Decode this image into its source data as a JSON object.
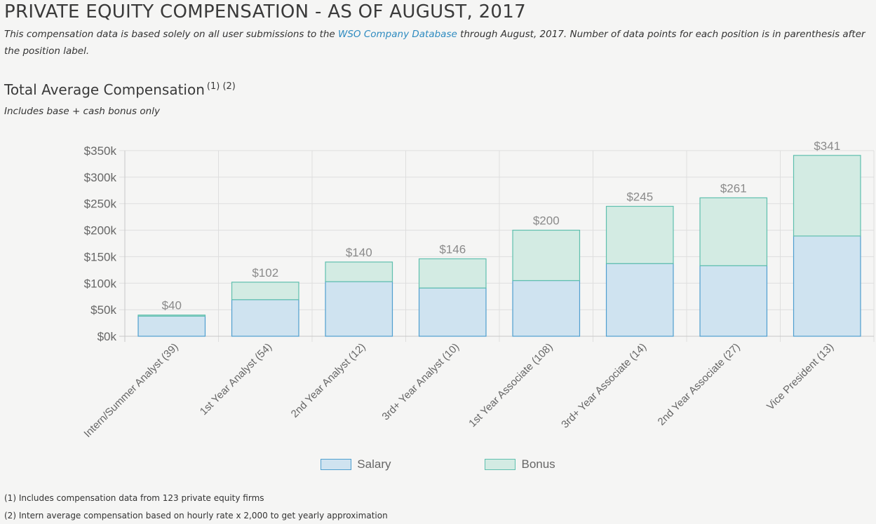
{
  "header": {
    "title": "PRIVATE EQUITY COMPENSATION - AS OF AUGUST, 2017",
    "intro_before": "This compensation data is based solely on all user submissions to the ",
    "intro_link": "WSO Company Database",
    "intro_after": " through August, 2017. Number of data points for each position is in parenthesis after the position label."
  },
  "section": {
    "title": "Total Average Compensation",
    "title_refs": "(1) (2)",
    "subtitle": "Includes base + cash bonus only"
  },
  "chart_data": {
    "type": "bar",
    "stacked": true,
    "categories": [
      "Intern/Summer Analyst (39)",
      "1st Year Analyst (54)",
      "2nd Year Analyst (12)",
      "3rd+ Year Analyst (10)",
      "1st Year Associate (108)",
      "3rd+ Year Associate (14)",
      "2nd Year Associate (27)",
      "Vice President (13)"
    ],
    "series": [
      {
        "name": "Salary",
        "values": [
          38,
          69,
          103,
          91,
          105,
          137,
          133,
          189
        ]
      },
      {
        "name": "Bonus",
        "values": [
          2,
          33,
          37,
          55,
          95,
          108,
          128,
          152
        ]
      }
    ],
    "totals_labels": [
      "$40",
      "$102",
      "$140",
      "$146",
      "$200",
      "$245",
      "$261",
      "$341"
    ],
    "yticks": [
      "$0k",
      "$50k",
      "$100k",
      "$150k",
      "$200k",
      "$250k",
      "$300k",
      "$350k"
    ],
    "ylim": [
      0,
      350
    ],
    "grid": true,
    "legend_position": "bottom",
    "colors": {
      "salary_fill": "#cfe3f0",
      "salary_stroke": "#4f9fcf",
      "bonus_fill": "#d3ebe3",
      "bonus_stroke": "#5fbfae",
      "grid": "#dedede",
      "axis_text": "#666666",
      "total_text": "#8a8a8a"
    }
  },
  "footnotes": [
    "(1) Includes compensation data from 123 private equity firms",
    "(2) Intern average compensation based on hourly rate x 2,000 to get yearly approximation"
  ]
}
